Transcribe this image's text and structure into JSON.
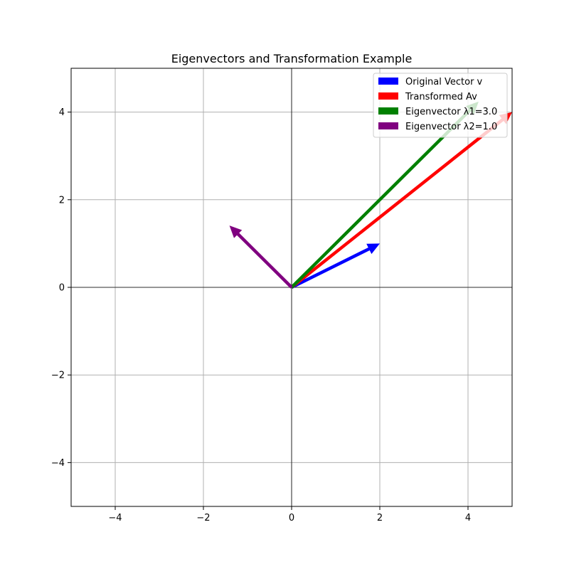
{
  "chart_data": {
    "type": "quiver",
    "title": "Eigenvectors and Transformation Example",
    "xlabel": "",
    "ylabel": "",
    "xlim": [
      -5,
      5
    ],
    "ylim": [
      -5,
      5
    ],
    "xticks": [
      -4,
      -2,
      0,
      2,
      4
    ],
    "yticks": [
      -4,
      -2,
      0,
      2,
      4
    ],
    "tick_labels": {
      "x": [
        "−4",
        "−2",
        "0",
        "2",
        "4"
      ],
      "y": [
        "−4",
        "−2",
        "0",
        "2",
        "4"
      ]
    },
    "grid": true,
    "axis_lines_at_zero": true,
    "legend_position": "top-right",
    "series": [
      {
        "name": "Original Vector v",
        "color": "#0000ff",
        "origin": [
          0,
          0
        ],
        "vector": [
          2,
          1
        ]
      },
      {
        "name": "Transformed Av",
        "color": "#ff0000",
        "origin": [
          0,
          0
        ],
        "vector": [
          5,
          4
        ]
      },
      {
        "name": "Eigenvector λ1=3.0",
        "color": "#008000",
        "origin": [
          0,
          0
        ],
        "vector": [
          4.24,
          4.24
        ]
      },
      {
        "name": "Eigenvector λ2=1.0",
        "color": "#800080",
        "origin": [
          0,
          0
        ],
        "vector": [
          -1.41,
          1.41
        ]
      }
    ]
  }
}
